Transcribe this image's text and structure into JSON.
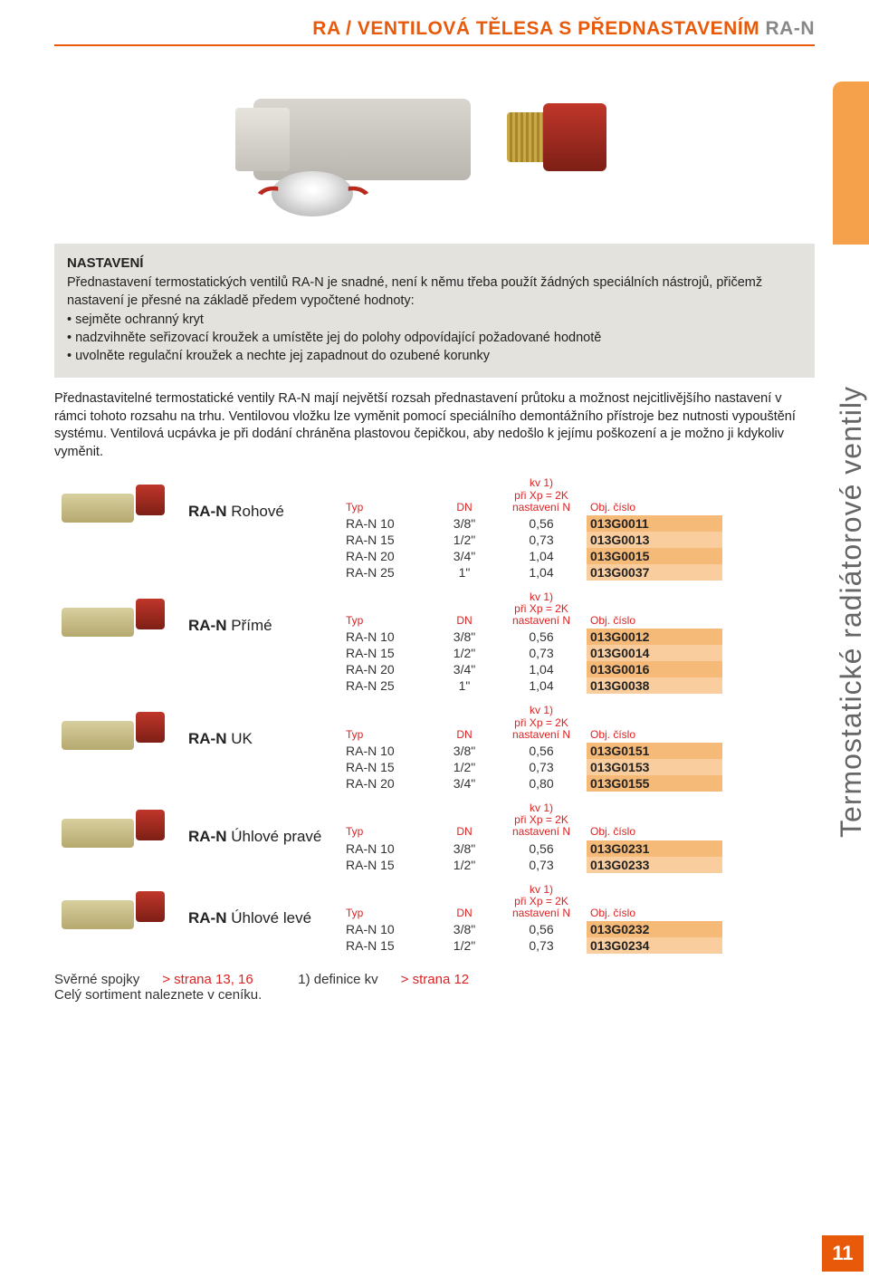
{
  "colors": {
    "accent": "#e85a0a",
    "header_red": "#d22",
    "obj_bg_dark": "#f5b978",
    "obj_bg_light": "#f9cd9e",
    "intro_bg": "#e4e2dc",
    "side_tab": "#f5a04a",
    "text": "#222"
  },
  "header": {
    "prefix": "RA / VENTILOVÁ TĚLESA S PŘEDNASTAVENÍM ",
    "suffix": "RA-N"
  },
  "intro": {
    "heading": "NASTAVENÍ",
    "para": "Přednastavení termostatických ventilů RA-N je snadné, není k němu třeba použít žádných speciálních nástrojů, přičemž nastavení je přesné na základě předem vypočtené hodnoty:",
    "bullets": [
      "sejměte ochranný kryt",
      "nadzvihněte seřizovací kroužek a umístěte jej do polohy odpovídající požadované hodnotě",
      "uvolněte regulační kroužek a nechte jej zapadnout do ozubené korunky"
    ]
  },
  "body": "Přednastavitelné termostatické ventily RA-N mají největší rozsah přednastavení průtoku a možnost nejcitlivějšího nastavení v rámci tohoto rozsahu na trhu. Ventilovou vložku lze vyměnit pomocí speciálního demontážního přístroje bez nutnosti vypouštění systému. Ventilová ucpávka je při dodání chráněna plastovou čepičkou, aby nedošlo k jejímu poškození a je možno ji kdykoliv vyměnit.",
  "columns": {
    "typ": "Typ",
    "dn": "DN",
    "kv_line1": "kv 1)",
    "kv_line2": "při Xp = 2K",
    "kv_line3": "nastavení N",
    "obj": "Obj. číslo"
  },
  "products": [
    {
      "title_bold": "RA-N ",
      "title_light": "Rohové",
      "rows": [
        {
          "typ": "RA-N 10",
          "dn": "3/8\"",
          "kv": "0,56",
          "obj": "013G0011"
        },
        {
          "typ": "RA-N 15",
          "dn": "1/2\"",
          "kv": "0,73",
          "obj": "013G0013"
        },
        {
          "typ": "RA-N 20",
          "dn": "3/4\"",
          "kv": "1,04",
          "obj": "013G0015"
        },
        {
          "typ": "RA-N 25",
          "dn": "1\"",
          "kv": "1,04",
          "obj": "013G0037"
        }
      ]
    },
    {
      "title_bold": "RA-N ",
      "title_light": "Přímé",
      "rows": [
        {
          "typ": "RA-N 10",
          "dn": "3/8\"",
          "kv": "0,56",
          "obj": "013G0012"
        },
        {
          "typ": "RA-N 15",
          "dn": "1/2\"",
          "kv": "0,73",
          "obj": "013G0014"
        },
        {
          "typ": "RA-N 20",
          "dn": "3/4\"",
          "kv": "1,04",
          "obj": "013G0016"
        },
        {
          "typ": "RA-N 25",
          "dn": "1\"",
          "kv": "1,04",
          "obj": "013G0038"
        }
      ]
    },
    {
      "title_bold": "RA-N ",
      "title_light": "UK",
      "rows": [
        {
          "typ": "RA-N 10",
          "dn": "3/8\"",
          "kv": "0,56",
          "obj": "013G0151"
        },
        {
          "typ": "RA-N 15",
          "dn": "1/2\"",
          "kv": "0,73",
          "obj": "013G0153"
        },
        {
          "typ": "RA-N 20",
          "dn": "3/4\"",
          "kv": "0,80",
          "obj": "013G0155"
        }
      ]
    },
    {
      "title_bold": "RA-N ",
      "title_light": "Úhlové pravé",
      "rows": [
        {
          "typ": "RA-N 10",
          "dn": "3/8\"",
          "kv": "0,56",
          "obj": "013G0231"
        },
        {
          "typ": "RA-N 15",
          "dn": "1/2\"",
          "kv": "0,73",
          "obj": "013G0233"
        }
      ]
    },
    {
      "title_bold": "RA-N ",
      "title_light": "Úhlové levé",
      "rows": [
        {
          "typ": "RA-N 10",
          "dn": "3/8\"",
          "kv": "0,56",
          "obj": "013G0232"
        },
        {
          "typ": "RA-N 15",
          "dn": "1/2\"",
          "kv": "0,73",
          "obj": "013G0234"
        }
      ]
    }
  ],
  "footer": {
    "left1": "Svěrné spojky",
    "left1_link": "> strana 13, 16",
    "left2": "Celý sortiment naleznete v ceníku.",
    "right1": "1) definice kv",
    "right1_link": "> strana 12"
  },
  "side_label": "Termostatické radiátorové ventily",
  "page_number": "11"
}
